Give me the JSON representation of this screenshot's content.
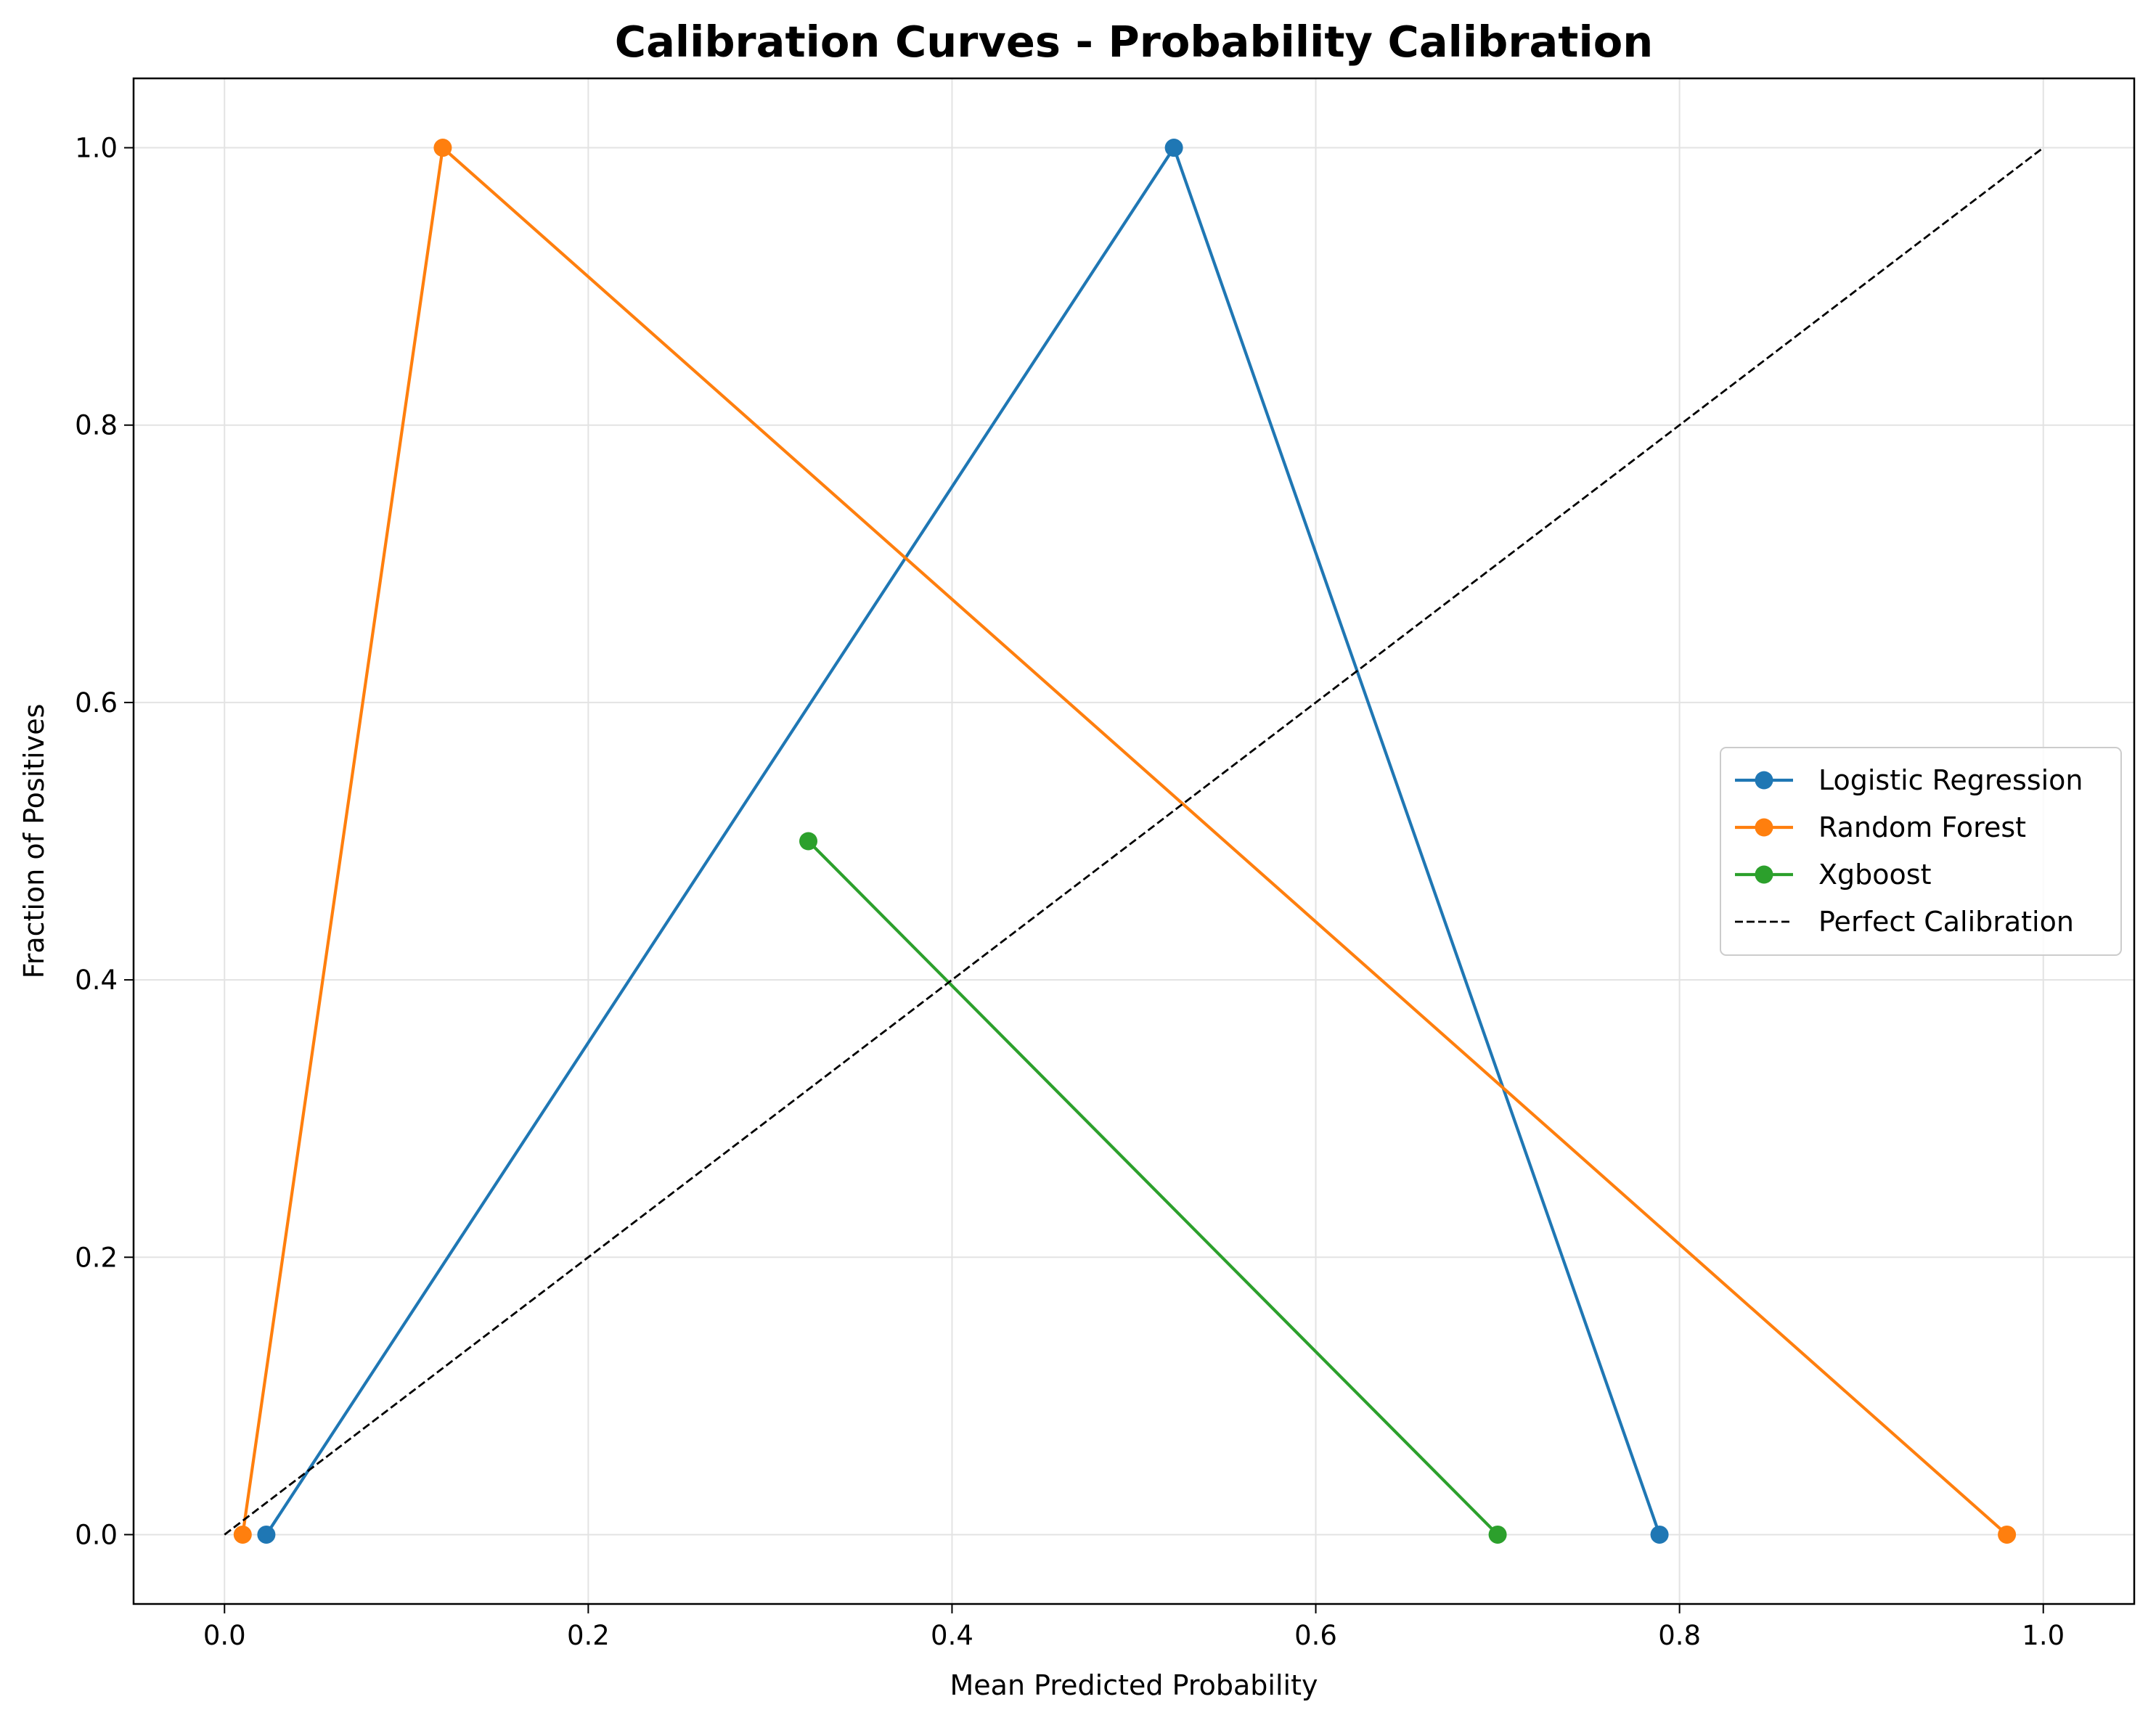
{
  "chart_data": {
    "type": "line",
    "title": "Calibration Curves - Probability Calibration",
    "xlabel": "Mean Predicted Probability",
    "ylabel": "Fraction of Positives",
    "xlim": [
      -0.05,
      1.05
    ],
    "ylim": [
      -0.05,
      1.05
    ],
    "xticks": [
      "0.0",
      "0.2",
      "0.4",
      "0.6",
      "0.8",
      "1.0"
    ],
    "yticks": [
      "0.0",
      "0.2",
      "0.4",
      "0.6",
      "0.8",
      "1.0"
    ],
    "grid": true,
    "legend_position": "center-right",
    "series": [
      {
        "name": "Logistic Regression",
        "color": "#1f77b4",
        "marker": "circle",
        "style": "solid",
        "x": [
          0.023,
          0.522,
          0.789
        ],
        "y": [
          0.0,
          1.0,
          0.0
        ]
      },
      {
        "name": "Random Forest",
        "color": "#ff7f0e",
        "marker": "circle",
        "style": "solid",
        "x": [
          0.01,
          0.12,
          0.98
        ],
        "y": [
          0.0,
          1.0,
          0.0
        ]
      },
      {
        "name": "Xgboost",
        "color": "#2ca02c",
        "marker": "circle",
        "style": "solid",
        "x": [
          0.321,
          0.7
        ],
        "y": [
          0.5,
          0.0
        ]
      },
      {
        "name": "Perfect Calibration",
        "color": "#000000",
        "marker": "none",
        "style": "dashed",
        "x": [
          0.0,
          1.0
        ],
        "y": [
          0.0,
          1.0
        ]
      }
    ]
  }
}
